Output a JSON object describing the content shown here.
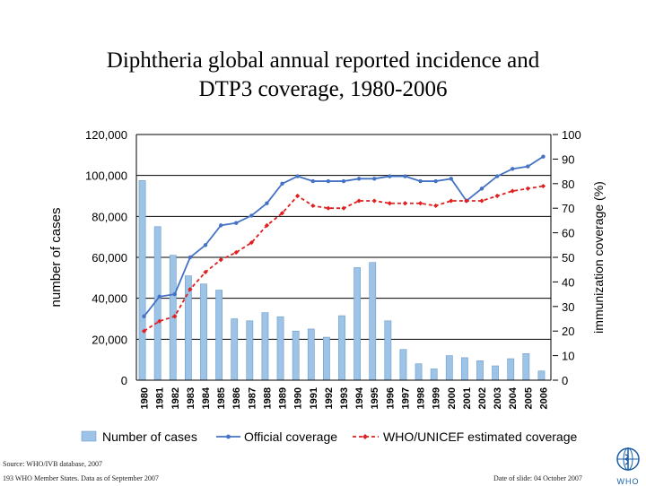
{
  "chart_data": {
    "type": "bar+line",
    "title_line1": "Diphtheria global annual reported incidence and",
    "title_line2": "DTP3 coverage, 1980-2006",
    "categories": [
      "1980",
      "1981",
      "1982",
      "1983",
      "1984",
      "1985",
      "1986",
      "1987",
      "1988",
      "1989",
      "1990",
      "1991",
      "1992",
      "1993",
      "1994",
      "1995",
      "1996",
      "1997",
      "1998",
      "1999",
      "2000",
      "2001",
      "2002",
      "2003",
      "2004",
      "2005",
      "2006"
    ],
    "ylabel_left": "number of cases",
    "ylabel_right": "immunization coverage (%)",
    "ylim_left": [
      0,
      120000
    ],
    "ylim_right": [
      0,
      100
    ],
    "left_ticks": [
      "0",
      "20,000",
      "40,000",
      "60,000",
      "80,000",
      "100,000",
      "120,000"
    ],
    "right_ticks": [
      "0",
      "10",
      "20",
      "30",
      "40",
      "50",
      "60",
      "70",
      "80",
      "90",
      "100"
    ],
    "series": [
      {
        "name": "Number of cases",
        "axis": "left",
        "kind": "bar",
        "color": "#9dc3e6",
        "values": [
          97500,
          75000,
          61000,
          51000,
          47000,
          44000,
          30000,
          29000,
          33000,
          31000,
          24000,
          25000,
          21000,
          31500,
          55000,
          57500,
          29000,
          15000,
          8000,
          5500,
          12000,
          11000,
          9500,
          7000,
          10500,
          13000,
          4500
        ]
      },
      {
        "name": "Official coverage",
        "axis": "right",
        "kind": "line",
        "color": "#4472c4",
        "values": [
          26,
          34,
          35,
          50,
          55,
          63,
          64,
          67,
          72,
          80,
          83,
          81,
          81,
          81,
          82,
          82,
          83,
          83,
          81,
          81,
          82,
          73,
          78,
          83,
          86,
          87,
          91
        ]
      },
      {
        "name": "WHO/UNICEF estimated coverage",
        "axis": "right",
        "kind": "dashed-line",
        "color": "#e02020",
        "values": [
          20,
          24,
          26,
          37,
          44,
          49,
          52,
          56,
          63,
          68,
          75,
          71,
          70,
          70,
          73,
          73,
          72,
          72,
          72,
          71,
          73,
          73,
          73,
          75,
          77,
          78,
          79
        ]
      }
    ],
    "grid": true,
    "legend_position": "bottom"
  },
  "footer": {
    "source": "Source: WHO/IVB database, 2007",
    "states": "193 WHO Member States. Data as of September 2007",
    "date": "Date of slide: 04 October 2007"
  },
  "logo": {
    "text": "WHO",
    "color": "#1a5fa8"
  }
}
